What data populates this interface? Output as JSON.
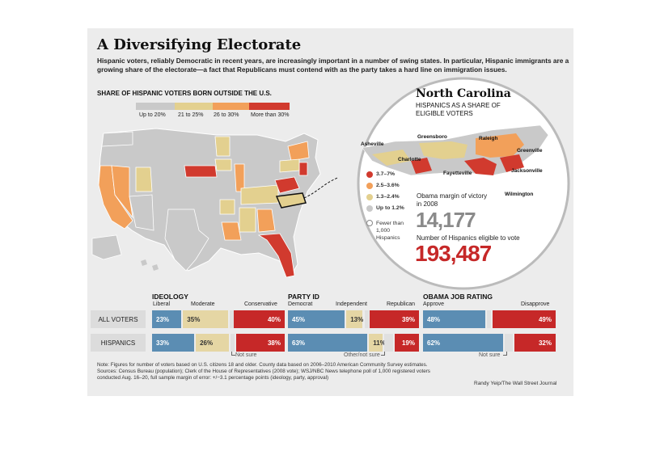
{
  "title": "A Diversifying Electorate",
  "subtitle": "Hispanic voters, reliably Democratic in recent years, are increasingly important in a number of swing states. In particular, Hispanic immigrants are a growing share of the electorate—a fact that Republicans must contend with as the party takes a hard line on immigration issues.",
  "map": {
    "heading": "SHARE OF HISPANIC VOTERS BORN OUTSIDE THE U.S.",
    "legend": [
      {
        "label": "Up to 20%",
        "color": "#c9c9c9"
      },
      {
        "label": "21 to 25%",
        "color": "#e3d08f"
      },
      {
        "label": "26 to 30%",
        "color": "#f2a05a"
      },
      {
        "label": "More than 30%",
        "color": "#d13a2e"
      }
    ]
  },
  "nc": {
    "title": "North Carolina",
    "subtitle": "HISPANICS AS A SHARE OF ELIGIBLE VOTERS",
    "cities": [
      "Asheville",
      "Greensboro",
      "Raleigh",
      "Greenville",
      "Charlotte",
      "Fayetteville",
      "Jacksonville",
      "Wilmington"
    ],
    "legend": [
      {
        "label": "3.7–7%",
        "color": "#d13a2e"
      },
      {
        "label": "2.5–3.6%",
        "color": "#f2a05a"
      },
      {
        "label": "1.3–2.4%",
        "color": "#e3d08f"
      },
      {
        "label": "Up to 1.2%",
        "color": "#c9c9c9"
      },
      {
        "label": "Fewer than 1,000 Hispanics",
        "color": "#ffffff"
      }
    ],
    "margin_label": "Obama margin of victory in 2008",
    "margin_value": "14,177",
    "eligible_label": "Number of Hispanics eligible to vote",
    "eligible_value": "193,487"
  },
  "chart_data": [
    {
      "type": "bar",
      "title": "IDEOLOGY",
      "categories": [
        "ALL VOTERS",
        "HISPANICS"
      ],
      "series": [
        {
          "name": "Liberal",
          "values": [
            23,
            33
          ],
          "labels": [
            "23%",
            "33%"
          ],
          "color": "#5b8db3"
        },
        {
          "name": "Moderate",
          "values": [
            35,
            26
          ],
          "labels": [
            "35%",
            "26%"
          ],
          "color": "#e5d6a4"
        },
        {
          "name": "Not sure",
          "values": [
            2,
            3
          ],
          "color": "#e0e0e0"
        },
        {
          "name": "Conservative",
          "values": [
            40,
            38
          ],
          "labels": [
            "40%",
            "38%"
          ],
          "color": "#c62828"
        }
      ],
      "note_label": "Not sure"
    },
    {
      "type": "bar",
      "title": "PARTY ID",
      "categories": [
        "ALL VOTERS",
        "HISPANICS"
      ],
      "series": [
        {
          "name": "Democrat",
          "values": [
            45,
            63
          ],
          "labels": [
            "45%",
            "63%"
          ],
          "color": "#5b8db3"
        },
        {
          "name": "Independent",
          "values": [
            13,
            11
          ],
          "labels": [
            "13%",
            "11%"
          ],
          "color": "#e5d6a4"
        },
        {
          "name": "Other/not sure",
          "values": [
            3,
            7
          ],
          "color": "#e0e0e0"
        },
        {
          "name": "Republican",
          "values": [
            39,
            19
          ],
          "labels": [
            "39%",
            "19%"
          ],
          "color": "#c62828"
        }
      ],
      "note_label": "Other/not sure"
    },
    {
      "type": "bar",
      "title": "OBAMA JOB RATING",
      "categories": [
        "ALL VOTERS",
        "HISPANICS"
      ],
      "series": [
        {
          "name": "Approve",
          "values": [
            48,
            62
          ],
          "labels": [
            "48%",
            "62%"
          ],
          "color": "#5b8db3"
        },
        {
          "name": "Not sure",
          "values": [
            3,
            6
          ],
          "color": "#e0e0e0"
        },
        {
          "name": "Disapprove",
          "values": [
            49,
            32
          ],
          "labels": [
            "49%",
            "32%"
          ],
          "color": "#c62828"
        }
      ],
      "note_label": "Not sure"
    }
  ],
  "footer": {
    "note": "Note: Figures for number of voters based on U.S. citizens 18 and older. County data based on 2006–2010 American Community Survey estimates.",
    "sources": "Sources: Census Bureau (population); Clerk of the House of Representatives (2008 vote); WSJ/NBC News telephone poll of 1,000 registered voters conducted Aug. 16–20, full sample margin of error: +/−3.1 percentage points (ideology, party, approval)",
    "credit": "Randy Yeip/The Wall Street Journal"
  }
}
